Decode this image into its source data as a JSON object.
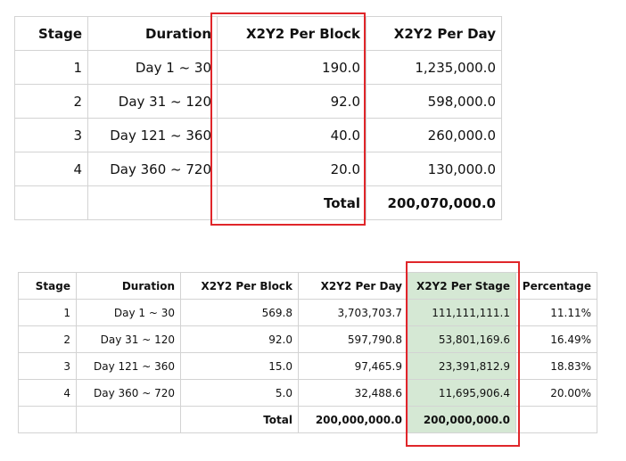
{
  "table1": {
    "headers": [
      "Stage",
      "Duration",
      "X2Y2 Per Block",
      "X2Y2 Per Day"
    ],
    "rows": [
      [
        "1",
        "Day 1 ~ 30",
        "190.0",
        "1,235,000.0"
      ],
      [
        "2",
        "Day 31 ~ 120",
        "92.0",
        "598,000.0"
      ],
      [
        "3",
        "Day 121 ~ 360",
        "40.0",
        "260,000.0"
      ],
      [
        "4",
        "Day 360 ~ 720",
        "20.0",
        "130,000.0"
      ]
    ],
    "total_label": "Total",
    "total_value": "200,070,000.0",
    "highlight_color": "#e0262a"
  },
  "table2": {
    "headers": [
      "Stage",
      "Duration",
      "X2Y2 Per Block",
      "X2Y2 Per Day",
      "X2Y2 Per Stage",
      "Percentage"
    ],
    "rows": [
      [
        "1",
        "Day 1 ~ 30",
        "569.8",
        "3,703,703.7",
        "111,111,111.1",
        "11.11%"
      ],
      [
        "2",
        "Day 31 ~ 120",
        "92.0",
        "597,790.8",
        "53,801,169.6",
        "16.49%"
      ],
      [
        "3",
        "Day 121 ~ 360",
        "15.0",
        "97,465.9",
        "23,391,812.9",
        "18.83%"
      ],
      [
        "4",
        "Day 360 ~ 720",
        "5.0",
        "32,488.6",
        "11,695,906.4",
        "20.00%"
      ]
    ],
    "total_label": "Total",
    "total_per_day": "200,000,000.0",
    "total_per_stage": "200,000,000.0",
    "column_fill_color": "#d5e8d4"
  }
}
